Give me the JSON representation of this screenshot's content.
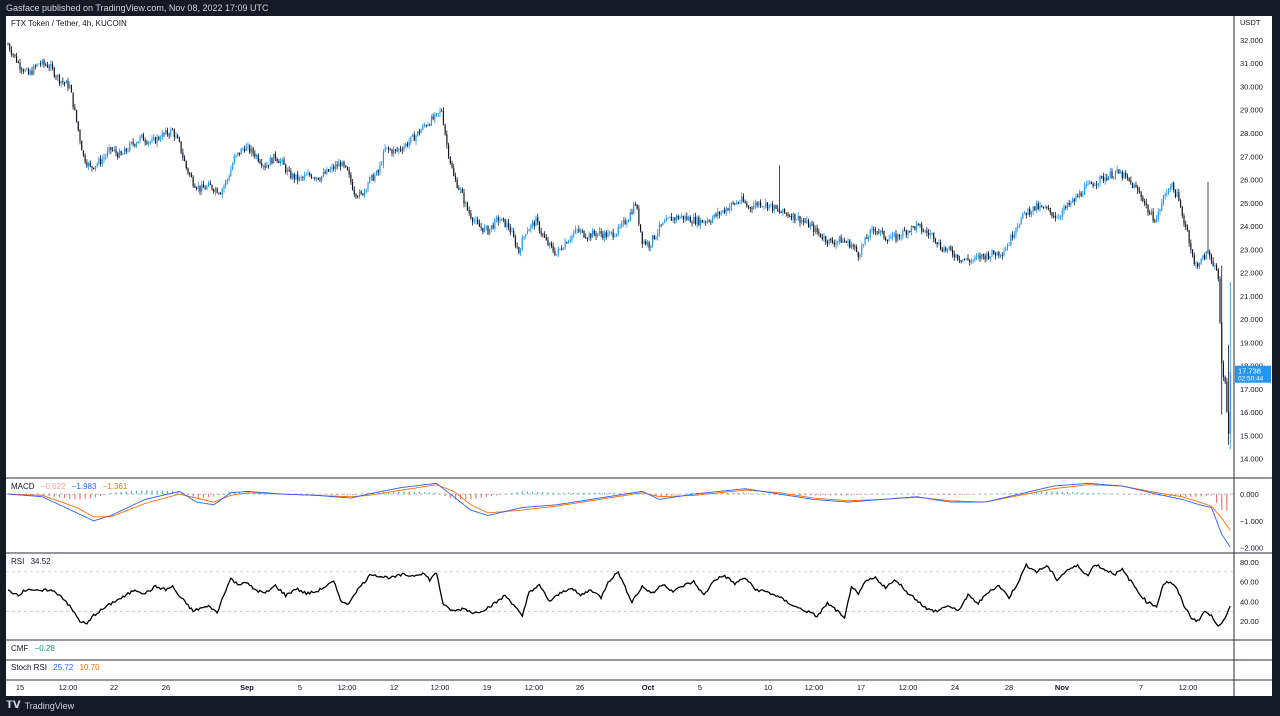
{
  "header": {
    "caption": "Gasface published on TradingView.com, Nov 08, 2022 17:09 UTC"
  },
  "footer": {
    "brand": "TradingView"
  },
  "chart": {
    "title": "FTX Token / Tether, 4h, KUCOIN",
    "currency": "USDT",
    "last_price_label": "17.738",
    "countdown_label": "02:50:44",
    "price_ticks": [
      "32.000",
      "31.000",
      "30.000",
      "29.000",
      "28.000",
      "27.000",
      "26.000",
      "25.000",
      "24.000",
      "23.000",
      "22.000",
      "21.000",
      "20.000",
      "19.000",
      "18.000",
      "17.000",
      "16.000",
      "15.000",
      "14.000"
    ],
    "time_ticks": [
      "15",
      "12:00",
      "22",
      "26",
      "Sep",
      "5",
      "12:00",
      "12",
      "12:00",
      "19",
      "12:00",
      "26",
      "Oct",
      "5",
      "10",
      "12:00",
      "17",
      "12:00",
      "24",
      "28",
      "Nov",
      "7",
      "12:00"
    ]
  },
  "indicators": {
    "macd": {
      "name": "MACD",
      "hist_value": "−0.622",
      "macd_value": "−1.983",
      "signal_value": "−1.361",
      "ticks": [
        "0.000",
        "−1.000",
        "−2.000"
      ]
    },
    "rsi": {
      "name": "RSI",
      "value": "34.52",
      "ticks": [
        "80.00",
        "60.00",
        "40.00",
        "20.00"
      ]
    },
    "cmf": {
      "name": "CMF",
      "value": "−0.28"
    },
    "stoch_rsi": {
      "name": "Stoch RSI",
      "k_value": "25.72",
      "d_value": "10.70"
    }
  },
  "colors": {
    "up": "#2196f3",
    "down": "#131722",
    "macd": "#2962ff",
    "signal": "#ff6d00",
    "hist_pos": "#26a69a",
    "hist_neg": "#ef5350",
    "price_tag": "#2196f3"
  },
  "chart_data": {
    "type": "candlestick",
    "symbol": "FTX Token / Tether",
    "interval": "4h",
    "exchange": "KUCOIN",
    "ylim": [
      13.6,
      32.6
    ],
    "price_anchors": [
      [
        0,
        31.8
      ],
      [
        6,
        31.0
      ],
      [
        12,
        30.5
      ],
      [
        18,
        31.0
      ],
      [
        24,
        30.9
      ],
      [
        30,
        30.3
      ],
      [
        36,
        30.0
      ],
      [
        40,
        28.5
      ],
      [
        44,
        27.0
      ],
      [
        48,
        26.5
      ],
      [
        54,
        26.8
      ],
      [
        60,
        27.3
      ],
      [
        66,
        27.0
      ],
      [
        72,
        27.5
      ],
      [
        78,
        27.8
      ],
      [
        84,
        27.6
      ],
      [
        90,
        27.9
      ],
      [
        96,
        28.1
      ],
      [
        100,
        27.5
      ],
      [
        104,
        26.5
      ],
      [
        108,
        25.9
      ],
      [
        112,
        25.6
      ],
      [
        118,
        25.7
      ],
      [
        124,
        25.5
      ],
      [
        128,
        26.0
      ],
      [
        132,
        26.9
      ],
      [
        138,
        27.4
      ],
      [
        144,
        27.1
      ],
      [
        150,
        26.6
      ],
      [
        156,
        27.0
      ],
      [
        160,
        26.7
      ],
      [
        164,
        26.2
      ],
      [
        170,
        26.0
      ],
      [
        176,
        26.2
      ],
      [
        182,
        26.1
      ],
      [
        188,
        26.4
      ],
      [
        194,
        26.7
      ],
      [
        198,
        26.3
      ],
      [
        202,
        25.5
      ],
      [
        206,
        25.3
      ],
      [
        210,
        25.9
      ],
      [
        216,
        26.3
      ],
      [
        220,
        27.3
      ],
      [
        226,
        27.2
      ],
      [
        232,
        27.5
      ],
      [
        238,
        27.9
      ],
      [
        244,
        28.4
      ],
      [
        250,
        28.7
      ],
      [
        253,
        29.0
      ],
      [
        256,
        27.5
      ],
      [
        260,
        26.1
      ],
      [
        264,
        25.5
      ],
      [
        268,
        24.7
      ],
      [
        274,
        24.0
      ],
      [
        280,
        23.8
      ],
      [
        286,
        24.3
      ],
      [
        292,
        24.0
      ],
      [
        298,
        22.9
      ],
      [
        302,
        23.8
      ],
      [
        308,
        24.2
      ],
      [
        314,
        23.3
      ],
      [
        320,
        22.8
      ],
      [
        326,
        23.4
      ],
      [
        332,
        23.8
      ],
      [
        338,
        23.6
      ],
      [
        344,
        23.7
      ],
      [
        350,
        23.6
      ],
      [
        356,
        23.8
      ],
      [
        362,
        24.4
      ],
      [
        366,
        25.0
      ],
      [
        370,
        23.4
      ],
      [
        374,
        23.2
      ],
      [
        380,
        23.9
      ],
      [
        386,
        24.3
      ],
      [
        392,
        24.4
      ],
      [
        398,
        24.3
      ],
      [
        404,
        24.2
      ],
      [
        410,
        24.3
      ],
      [
        416,
        24.6
      ],
      [
        422,
        24.9
      ],
      [
        428,
        25.1
      ],
      [
        432,
        24.8
      ],
      [
        438,
        25.0
      ],
      [
        444,
        24.9
      ],
      [
        450,
        24.6
      ],
      [
        456,
        24.5
      ],
      [
        462,
        24.3
      ],
      [
        468,
        24.0
      ],
      [
        474,
        23.6
      ],
      [
        480,
        23.3
      ],
      [
        486,
        23.4
      ],
      [
        492,
        23.2
      ],
      [
        496,
        22.8
      ],
      [
        502,
        23.6
      ],
      [
        506,
        23.9
      ],
      [
        512,
        23.5
      ],
      [
        518,
        23.5
      ],
      [
        524,
        23.8
      ],
      [
        530,
        24.0
      ],
      [
        536,
        23.7
      ],
      [
        540,
        23.6
      ],
      [
        544,
        23.1
      ],
      [
        550,
        22.9
      ],
      [
        556,
        22.6
      ],
      [
        562,
        22.5
      ],
      [
        568,
        22.7
      ],
      [
        574,
        22.8
      ],
      [
        580,
        22.9
      ],
      [
        584,
        23.3
      ],
      [
        588,
        24.0
      ],
      [
        594,
        24.6
      ],
      [
        600,
        24.8
      ],
      [
        606,
        24.7
      ],
      [
        612,
        24.4
      ],
      [
        616,
        24.7
      ],
      [
        622,
        25.1
      ],
      [
        628,
        25.6
      ],
      [
        634,
        25.9
      ],
      [
        640,
        26.1
      ],
      [
        646,
        26.3
      ],
      [
        650,
        26.2
      ],
      [
        654,
        25.9
      ],
      [
        658,
        25.6
      ],
      [
        662,
        25.2
      ],
      [
        666,
        24.5
      ],
      [
        670,
        24.3
      ],
      [
        674,
        25.2
      ],
      [
        678,
        25.8
      ],
      [
        682,
        25.3
      ],
      [
        686,
        24.2
      ],
      [
        688,
        23.8
      ],
      [
        692,
        22.3
      ],
      [
        696,
        22.5
      ],
      [
        700,
        22.9
      ],
      [
        704,
        22.3
      ],
      [
        706,
        21.6
      ],
      [
        708,
        18.1
      ],
      [
        710,
        17.2
      ],
      [
        712,
        15.2
      ],
      [
        713,
        17.7
      ]
    ],
    "macd_anchors": [
      [
        0,
        0.0
      ],
      [
        20,
        -0.1
      ],
      [
        40,
        -0.7
      ],
      [
        50,
        -1.0
      ],
      [
        60,
        -0.8
      ],
      [
        80,
        -0.2
      ],
      [
        100,
        0.1
      ],
      [
        110,
        -0.3
      ],
      [
        120,
        -0.4
      ],
      [
        130,
        0.05
      ],
      [
        140,
        0.1
      ],
      [
        160,
        0.0
      ],
      [
        180,
        -0.05
      ],
      [
        200,
        -0.15
      ],
      [
        210,
        0.0
      ],
      [
        230,
        0.25
      ],
      [
        250,
        0.4
      ],
      [
        260,
        -0.1
      ],
      [
        270,
        -0.6
      ],
      [
        280,
        -0.8
      ],
      [
        300,
        -0.5
      ],
      [
        320,
        -0.4
      ],
      [
        340,
        -0.2
      ],
      [
        360,
        0.0
      ],
      [
        370,
        0.1
      ],
      [
        380,
        -0.2
      ],
      [
        400,
        0.0
      ],
      [
        430,
        0.2
      ],
      [
        450,
        0.0
      ],
      [
        470,
        -0.2
      ],
      [
        490,
        -0.3
      ],
      [
        510,
        -0.2
      ],
      [
        530,
        -0.1
      ],
      [
        550,
        -0.3
      ],
      [
        570,
        -0.3
      ],
      [
        590,
        0.0
      ],
      [
        610,
        0.3
      ],
      [
        630,
        0.4
      ],
      [
        650,
        0.3
      ],
      [
        670,
        0.0
      ],
      [
        685,
        -0.2
      ],
      [
        695,
        -0.4
      ],
      [
        702,
        -0.5
      ],
      [
        708,
        -1.5
      ],
      [
        713,
        -1.983
      ]
    ],
    "signal_anchors": [
      [
        0,
        0.0
      ],
      [
        20,
        -0.05
      ],
      [
        40,
        -0.5
      ],
      [
        50,
        -0.85
      ],
      [
        60,
        -0.85
      ],
      [
        80,
        -0.35
      ],
      [
        100,
        0.0
      ],
      [
        110,
        -0.15
      ],
      [
        120,
        -0.3
      ],
      [
        130,
        -0.05
      ],
      [
        140,
        0.05
      ],
      [
        160,
        0.0
      ],
      [
        180,
        -0.05
      ],
      [
        200,
        -0.1
      ],
      [
        210,
        -0.05
      ],
      [
        230,
        0.15
      ],
      [
        250,
        0.35
      ],
      [
        260,
        0.1
      ],
      [
        270,
        -0.4
      ],
      [
        280,
        -0.7
      ],
      [
        300,
        -0.6
      ],
      [
        320,
        -0.45
      ],
      [
        340,
        -0.25
      ],
      [
        360,
        -0.05
      ],
      [
        370,
        0.05
      ],
      [
        380,
        -0.1
      ],
      [
        400,
        -0.05
      ],
      [
        430,
        0.15
      ],
      [
        450,
        0.05
      ],
      [
        470,
        -0.15
      ],
      [
        490,
        -0.25
      ],
      [
        510,
        -0.2
      ],
      [
        530,
        -0.12
      ],
      [
        550,
        -0.25
      ],
      [
        570,
        -0.3
      ],
      [
        590,
        -0.05
      ],
      [
        610,
        0.2
      ],
      [
        630,
        0.35
      ],
      [
        650,
        0.3
      ],
      [
        670,
        0.05
      ],
      [
        685,
        -0.1
      ],
      [
        695,
        -0.3
      ],
      [
        702,
        -0.45
      ],
      [
        708,
        -0.9
      ],
      [
        713,
        -1.361
      ]
    ],
    "macd_ylim": [
      -2.05,
      0.45
    ],
    "rsi_anchors": [
      [
        0,
        51
      ],
      [
        6,
        47
      ],
      [
        12,
        53
      ],
      [
        18,
        50
      ],
      [
        24,
        52
      ],
      [
        30,
        47
      ],
      [
        34,
        40
      ],
      [
        38,
        30
      ],
      [
        42,
        20
      ],
      [
        46,
        17
      ],
      [
        50,
        26
      ],
      [
        56,
        33
      ],
      [
        62,
        40
      ],
      [
        68,
        45
      ],
      [
        74,
        52
      ],
      [
        80,
        48
      ],
      [
        86,
        55
      ],
      [
        92,
        52
      ],
      [
        96,
        55
      ],
      [
        100,
        45
      ],
      [
        104,
        38
      ],
      [
        108,
        30
      ],
      [
        112,
        33
      ],
      [
        118,
        35
      ],
      [
        122,
        28
      ],
      [
        126,
        48
      ],
      [
        130,
        63
      ],
      [
        134,
        57
      ],
      [
        138,
        60
      ],
      [
        144,
        52
      ],
      [
        150,
        48
      ],
      [
        156,
        56
      ],
      [
        162,
        46
      ],
      [
        168,
        53
      ],
      [
        174,
        48
      ],
      [
        180,
        50
      ],
      [
        186,
        56
      ],
      [
        190,
        60
      ],
      [
        194,
        42
      ],
      [
        198,
        36
      ],
      [
        202,
        48
      ],
      [
        206,
        56
      ],
      [
        212,
        68
      ],
      [
        218,
        65
      ],
      [
        224,
        64
      ],
      [
        230,
        67
      ],
      [
        236,
        66
      ],
      [
        242,
        69
      ],
      [
        246,
        62
      ],
      [
        250,
        69
      ],
      [
        254,
        36
      ],
      [
        260,
        30
      ],
      [
        266,
        33
      ],
      [
        272,
        28
      ],
      [
        278,
        32
      ],
      [
        284,
        38
      ],
      [
        290,
        46
      ],
      [
        296,
        35
      ],
      [
        300,
        24
      ],
      [
        304,
        50
      ],
      [
        310,
        56
      ],
      [
        316,
        40
      ],
      [
        322,
        48
      ],
      [
        328,
        54
      ],
      [
        334,
        46
      ],
      [
        340,
        52
      ],
      [
        346,
        44
      ],
      [
        350,
        60
      ],
      [
        356,
        70
      ],
      [
        360,
        54
      ],
      [
        364,
        40
      ],
      [
        370,
        55
      ],
      [
        376,
        48
      ],
      [
        382,
        58
      ],
      [
        388,
        50
      ],
      [
        394,
        56
      ],
      [
        400,
        60
      ],
      [
        406,
        46
      ],
      [
        412,
        62
      ],
      [
        418,
        66
      ],
      [
        424,
        58
      ],
      [
        430,
        64
      ],
      [
        436,
        52
      ],
      [
        442,
        50
      ],
      [
        448,
        46
      ],
      [
        454,
        40
      ],
      [
        460,
        34
      ],
      [
        466,
        30
      ],
      [
        472,
        25
      ],
      [
        478,
        38
      ],
      [
        484,
        30
      ],
      [
        488,
        22
      ],
      [
        492,
        56
      ],
      [
        496,
        46
      ],
      [
        500,
        60
      ],
      [
        506,
        64
      ],
      [
        512,
        54
      ],
      [
        518,
        62
      ],
      [
        524,
        50
      ],
      [
        530,
        42
      ],
      [
        536,
        32
      ],
      [
        542,
        30
      ],
      [
        548,
        36
      ],
      [
        554,
        30
      ],
      [
        560,
        46
      ],
      [
        566,
        38
      ],
      [
        572,
        50
      ],
      [
        578,
        56
      ],
      [
        584,
        44
      ],
      [
        590,
        62
      ],
      [
        594,
        77
      ],
      [
        600,
        70
      ],
      [
        606,
        76
      ],
      [
        612,
        62
      ],
      [
        618,
        72
      ],
      [
        624,
        76
      ],
      [
        630,
        66
      ],
      [
        634,
        78
      ],
      [
        640,
        72
      ],
      [
        646,
        68
      ],
      [
        650,
        72
      ],
      [
        656,
        58
      ],
      [
        660,
        48
      ],
      [
        664,
        40
      ],
      [
        670,
        35
      ],
      [
        674,
        58
      ],
      [
        678,
        60
      ],
      [
        682,
        52
      ],
      [
        686,
        36
      ],
      [
        690,
        24
      ],
      [
        694,
        20
      ],
      [
        698,
        30
      ],
      [
        702,
        25
      ],
      [
        706,
        16
      ],
      [
        710,
        22
      ],
      [
        713,
        34.52
      ]
    ],
    "rsi_levels": [
      70,
      30
    ]
  }
}
